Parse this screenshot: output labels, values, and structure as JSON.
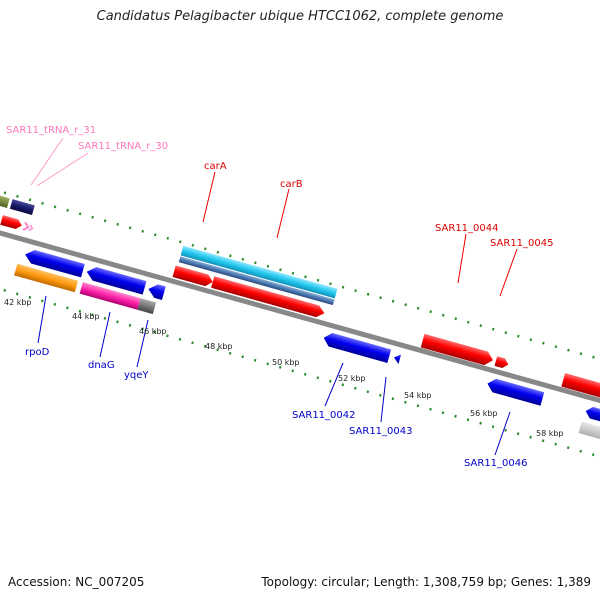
{
  "title": "Candidatus Pelagibacter ubique HTCC1062, complete genome",
  "footer": {
    "accession": "Accession: NC_007205",
    "summary": "Topology: circular; Length: 1,308,759 bp; Genes: 1,389"
  },
  "colors": {
    "plus_strand": "#ff0000",
    "minus_strand": "#0000ff",
    "trna": "#ff88cc",
    "rrna_cyan": "#33ccee",
    "backbone": "#888888",
    "tick_green": "#228822"
  },
  "position_ticks": [
    "42 kbp",
    "44 kbp",
    "46 kbp",
    "48 kbp",
    "50 kbp",
    "52 kbp",
    "54 kbp",
    "56 kbp",
    "58 kbp"
  ],
  "labels": {
    "trna_31": "SAR11_tRNA_r_31",
    "trna_30": "SAR11_tRNA_r_30",
    "carA": "carA",
    "carB": "carB",
    "sar0044": "SAR11_0044",
    "sar0045": "SAR11_0045",
    "rpoD": "rpoD",
    "dnaG": "dnaG",
    "yqeY": "yqeY",
    "sar0042": "SAR11_0042",
    "sar0043": "SAR11_0043",
    "sar0046": "SAR11_0046"
  }
}
